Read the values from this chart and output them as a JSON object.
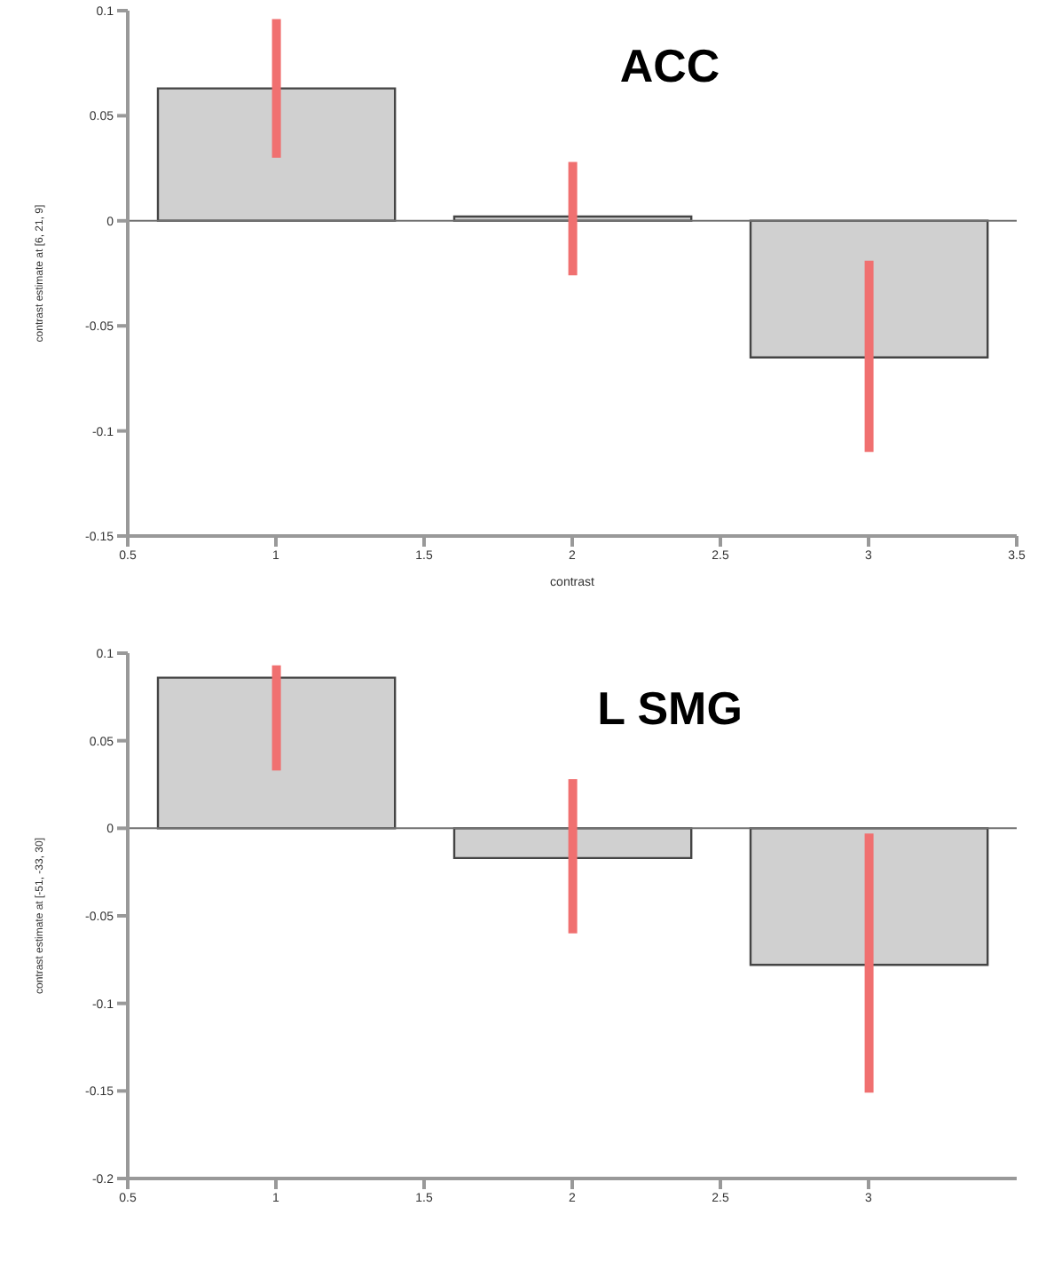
{
  "chart_data": [
    {
      "type": "bar",
      "title": "ACC",
      "xlabel": "contrast",
      "ylabel": "contrast estimate at [6, 21, 9]",
      "x": [
        1,
        2,
        3
      ],
      "values": [
        0.063,
        0.002,
        -0.065
      ],
      "errors": [
        [
          0.03,
          0.096
        ],
        [
          -0.026,
          0.028
        ],
        [
          -0.11,
          -0.019
        ]
      ],
      "color": "#d0d0d0",
      "xlim": [
        0.5,
        3.5
      ],
      "xticks": [
        0.5,
        1,
        1.5,
        2,
        2.5,
        3,
        3.5
      ],
      "ylim": [
        -0.15,
        0.1
      ],
      "yticks": [
        -0.15,
        -0.1,
        -0.05,
        0,
        0.05,
        0.1
      ],
      "ref_lines": [
        {
          "axis": "y",
          "value": 0,
          "color": "#707070"
        }
      ],
      "grid": false
    },
    {
      "type": "bar",
      "title": "L SMG",
      "ylabel": "contrast estimate at [-51, -33, 30]",
      "x": [
        1,
        2,
        3
      ],
      "values": [
        0.086,
        -0.017,
        -0.078
      ],
      "errors": [
        [
          0.033,
          0.093
        ],
        [
          -0.06,
          0.028
        ],
        [
          -0.151,
          -0.003
        ]
      ],
      "color": "#d0d0d0",
      "xlim": [
        0.5,
        3.5
      ],
      "xticks": [
        0.5,
        1,
        1.5,
        2,
        2.5,
        3
      ],
      "ylim": [
        -0.2,
        0.1
      ],
      "yticks": [
        -0.2,
        -0.15,
        -0.1,
        -0.05,
        0,
        0.05,
        0.1
      ],
      "ref_lines": [
        {
          "axis": "y",
          "value": 0,
          "color": "#707070"
        }
      ],
      "grid": false
    }
  ]
}
